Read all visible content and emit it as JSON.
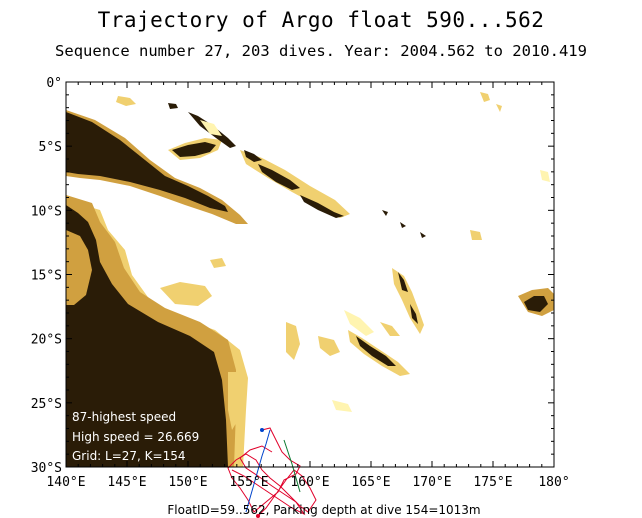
{
  "header": {
    "title": "Trajectory of Argo float 590...562",
    "subtitle": "Sequence number 27, 203 dives. Year: 2004.562 to 2010.419"
  },
  "map": {
    "lon_range": [
      140,
      180
    ],
    "lat_range": [
      0,
      -30
    ],
    "lon_ticks": [
      "140°E",
      "145°E",
      "150°E",
      "155°E",
      "160°E",
      "165°E",
      "170°E",
      "175°E",
      "180°"
    ],
    "lat_ticks": [
      "0°",
      "5°S",
      "10°S",
      "15°S",
      "20°S",
      "25°S",
      "30°S"
    ],
    "colors": {
      "land": "#2a1c07",
      "shelf": "#d0a040",
      "shallow": "#f0d070",
      "shoal": "#fff4b0",
      "ocean": "#ffffff",
      "trajectory": "#e0002a",
      "trajectory_alt": "#0044cc"
    }
  },
  "legend": {
    "line1": "87-highest speed",
    "line2": "High speed = 26.669",
    "line3": "Grid: L=27, K=154"
  },
  "footer": {
    "text": "FloatID=59..562, Parking depth at dive 154=1013m"
  }
}
